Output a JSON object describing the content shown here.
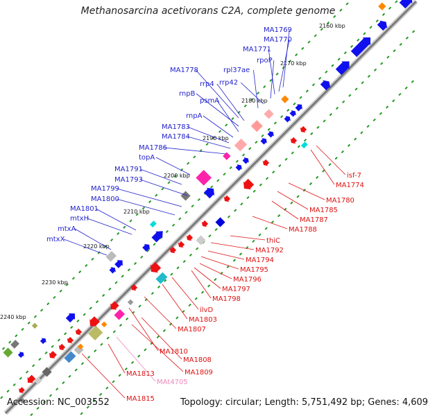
{
  "title": "Methanosarcina acetivorans C2A, complete genome",
  "accession": "Accession: NC_003552",
  "topology": "Topology: circular; Length: 5,751,492 bp; Genes: 4,609",
  "colors": {
    "upper_label": "#2222cc",
    "lower_label": "#dd1111",
    "rna_label": "#ee88bb",
    "backbone": "#7a7a7a",
    "tick_dot": "#229922"
  },
  "ticks": [
    {
      "label": "2160 kbp"
    },
    {
      "label": "2170 kbp"
    },
    {
      "label": "2180 kbp"
    },
    {
      "label": "2190 kbp"
    },
    {
      "label": "2200 kbp"
    },
    {
      "label": "2210 kbp"
    },
    {
      "label": "2220 kbp"
    },
    {
      "label": "2230 kbp"
    },
    {
      "label": "2240 kbp"
    }
  ],
  "upper_genes": [
    {
      "name": "MA1769"
    },
    {
      "name": "MA1770"
    },
    {
      "name": "MA1771"
    },
    {
      "name": "rpoP"
    },
    {
      "name": "rpl37ae"
    },
    {
      "name": "MA1778"
    },
    {
      "name": "rrp4"
    },
    {
      "name": "rrp42"
    },
    {
      "name": "rnpB"
    },
    {
      "name": "psmA"
    },
    {
      "name": "rnpA"
    },
    {
      "name": "MA1783"
    },
    {
      "name": "MA1784"
    },
    {
      "name": "MA1786"
    },
    {
      "name": "topA"
    },
    {
      "name": "MA1791"
    },
    {
      "name": "MA1793"
    },
    {
      "name": "MA1799"
    },
    {
      "name": "MA1800"
    },
    {
      "name": "MA1801"
    },
    {
      "name": "mtxH"
    },
    {
      "name": "mtxA"
    },
    {
      "name": "mtxX"
    }
  ],
  "lower_genes": [
    {
      "name": "isf-7"
    },
    {
      "name": "MA1774"
    },
    {
      "name": "MA1780"
    },
    {
      "name": "MA1785"
    },
    {
      "name": "MA1787"
    },
    {
      "name": "MA1788"
    },
    {
      "name": "thiC"
    },
    {
      "name": "MA1792"
    },
    {
      "name": "MA1794"
    },
    {
      "name": "MA1795"
    },
    {
      "name": "MA1796"
    },
    {
      "name": "MA1797"
    },
    {
      "name": "MA1798"
    },
    {
      "name": "ilvD"
    },
    {
      "name": "MA1803"
    },
    {
      "name": "MA1807"
    },
    {
      "name": "MA1810"
    },
    {
      "name": "MA1808"
    },
    {
      "name": "MA1809"
    },
    {
      "name": "MA1813"
    },
    {
      "name": "MAt4705"
    },
    {
      "name": "MA1815"
    }
  ]
}
